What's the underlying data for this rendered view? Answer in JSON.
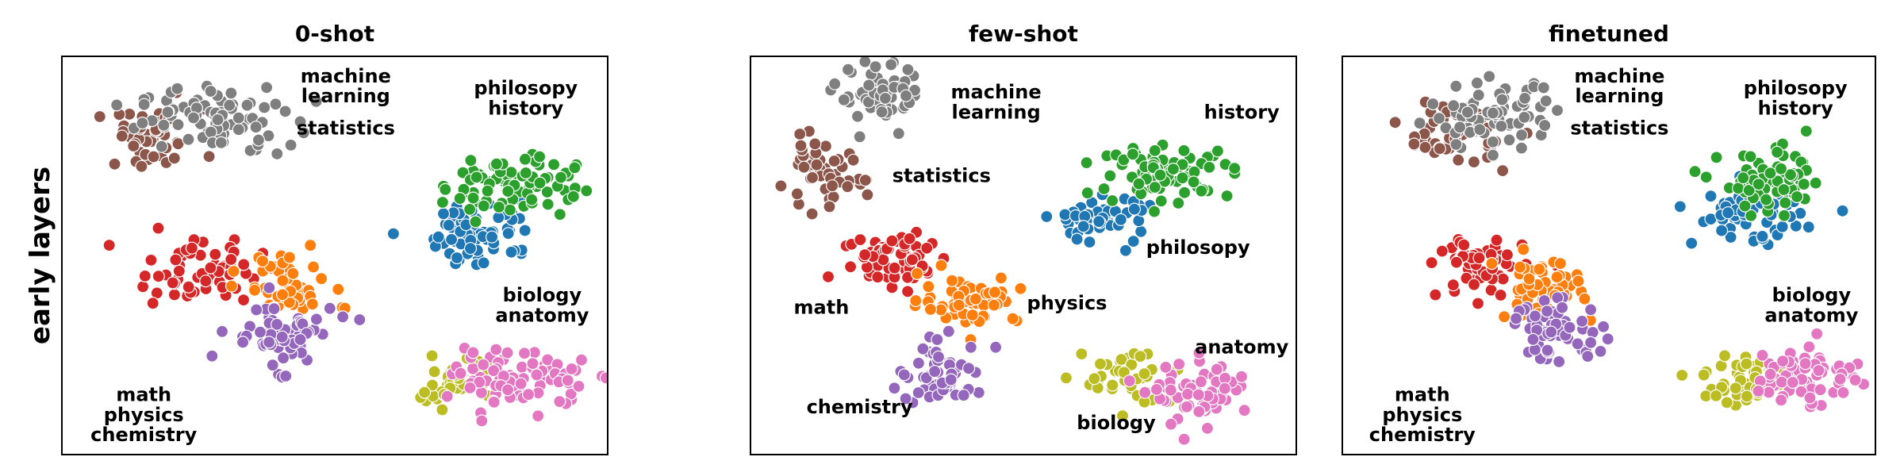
{
  "figure": {
    "row_label": "early layers"
  },
  "chart_data": [
    {
      "type": "scatter",
      "title": "0-shot",
      "xlim": [
        0,
        100
      ],
      "ylim": [
        0,
        100
      ],
      "clusters": [
        {
          "name": "statistics",
          "color": "#8c564b",
          "cx": 16,
          "cy": 79,
          "sx": 5,
          "sy": 4,
          "n": 45
        },
        {
          "name": "machine learning",
          "color": "#7f7f7f",
          "cx": 28,
          "cy": 84,
          "sx": 7,
          "sy": 4,
          "n": 80
        },
        {
          "name": "philosophy",
          "color": "#1f77b4",
          "cx": 77,
          "cy": 56,
          "sx": 5,
          "sy": 4,
          "n": 70
        },
        {
          "name": "history",
          "color": "#2ca02c",
          "cx": 82,
          "cy": 68,
          "sx": 6,
          "sy": 4,
          "n": 80
        },
        {
          "name": "math",
          "color": "#d62728",
          "cx": 25,
          "cy": 46,
          "sx": 6,
          "sy": 4,
          "n": 60
        },
        {
          "name": "physics",
          "color": "#ff7f0e",
          "cx": 41,
          "cy": 42,
          "sx": 4,
          "sy": 4.5,
          "n": 50
        },
        {
          "name": "chemistry",
          "color": "#9467bd",
          "cx": 40,
          "cy": 30,
          "sx": 5,
          "sy": 4,
          "n": 60
        },
        {
          "name": "biology",
          "color": "#bcbd22",
          "cx": 72,
          "cy": 18,
          "sx": 4.5,
          "sy": 3,
          "n": 45
        },
        {
          "name": "anatomy",
          "color": "#e377c2",
          "cx": 84,
          "cy": 19,
          "sx": 6,
          "sy": 3.5,
          "n": 80
        }
      ],
      "labels": [
        {
          "text": "machine",
          "x": 52,
          "y": 95
        },
        {
          "text": "learning",
          "x": 52,
          "y": 90
        },
        {
          "text": "statistics",
          "x": 52,
          "y": 82
        },
        {
          "text": "philosopy",
          "x": 85,
          "y": 92
        },
        {
          "text": "history",
          "x": 85,
          "y": 87
        },
        {
          "text": "biology",
          "x": 88,
          "y": 40
        },
        {
          "text": "anatomy",
          "x": 88,
          "y": 35
        },
        {
          "text": "math",
          "x": 15,
          "y": 15
        },
        {
          "text": "physics",
          "x": 15,
          "y": 10
        },
        {
          "text": "chemistry",
          "x": 15,
          "y": 5
        }
      ]
    },
    {
      "type": "scatter",
      "title": "few-shot",
      "xlim": [
        0,
        100
      ],
      "ylim": [
        0,
        100
      ],
      "clusters": [
        {
          "name": "machine learning",
          "color": "#7f7f7f",
          "cx": 24,
          "cy": 90,
          "sx": 4,
          "sy": 4,
          "n": 60
        },
        {
          "name": "statistics",
          "color": "#8c564b",
          "cx": 13,
          "cy": 70,
          "sx": 4,
          "sy": 4,
          "n": 50
        },
        {
          "name": "philosophy",
          "color": "#1f77b4",
          "cx": 64,
          "cy": 59,
          "sx": 4.5,
          "sy": 3,
          "n": 55
        },
        {
          "name": "history",
          "color": "#2ca02c",
          "cx": 76,
          "cy": 71,
          "sx": 6,
          "sy": 3,
          "n": 80
        },
        {
          "name": "math",
          "color": "#d62728",
          "cx": 27,
          "cy": 49,
          "sx": 5,
          "sy": 4,
          "n": 65
        },
        {
          "name": "physics",
          "color": "#ff7f0e",
          "cx": 40,
          "cy": 39,
          "sx": 4.5,
          "sy": 3,
          "n": 60
        },
        {
          "name": "chemistry",
          "color": "#9467bd",
          "cx": 35,
          "cy": 20,
          "sx": 4,
          "sy": 4,
          "n": 60
        },
        {
          "name": "biology",
          "color": "#bcbd22",
          "cx": 70,
          "cy": 19,
          "sx": 4.5,
          "sy": 4,
          "n": 40
        },
        {
          "name": "anatomy",
          "color": "#e377c2",
          "cx": 83,
          "cy": 15,
          "sx": 4.5,
          "sy": 4,
          "n": 65
        }
      ],
      "labels": [
        {
          "text": "machine",
          "x": 45,
          "y": 91
        },
        {
          "text": "learning",
          "x": 45,
          "y": 86
        },
        {
          "text": "statistics",
          "x": 35,
          "y": 70
        },
        {
          "text": "history",
          "x": 90,
          "y": 86
        },
        {
          "text": "philosopy",
          "x": 82,
          "y": 52
        },
        {
          "text": "math",
          "x": 13,
          "y": 37
        },
        {
          "text": "physics",
          "x": 58,
          "y": 38
        },
        {
          "text": "anatomy",
          "x": 90,
          "y": 27
        },
        {
          "text": "chemistry",
          "x": 20,
          "y": 12
        },
        {
          "text": "biology",
          "x": 67,
          "y": 8
        }
      ]
    },
    {
      "type": "scatter",
      "title": "finetuned",
      "xlim": [
        0,
        100
      ],
      "ylim": [
        0,
        100
      ],
      "clusters": [
        {
          "name": "statistics",
          "color": "#8c564b",
          "cx": 21,
          "cy": 81,
          "sx": 5,
          "sy": 4,
          "n": 50
        },
        {
          "name": "machine learning",
          "color": "#7f7f7f",
          "cx": 28,
          "cy": 85,
          "sx": 6,
          "sy": 4,
          "n": 70
        },
        {
          "name": "philosophy",
          "color": "#1f77b4",
          "cx": 76,
          "cy": 60,
          "sx": 5,
          "sy": 3.5,
          "n": 60
        },
        {
          "name": "history",
          "color": "#2ca02c",
          "cx": 81,
          "cy": 68,
          "sx": 5,
          "sy": 4,
          "n": 70
        },
        {
          "name": "math",
          "color": "#d62728",
          "cx": 26,
          "cy": 47,
          "sx": 4,
          "sy": 4,
          "n": 60
        },
        {
          "name": "physics",
          "color": "#ff7f0e",
          "cx": 37,
          "cy": 42,
          "sx": 4,
          "sy": 4,
          "n": 55
        },
        {
          "name": "chemistry",
          "color": "#9467bd",
          "cx": 40,
          "cy": 31,
          "sx": 4.5,
          "sy": 3.5,
          "n": 60
        },
        {
          "name": "biology",
          "color": "#bcbd22",
          "cx": 76,
          "cy": 19,
          "sx": 4,
          "sy": 3.5,
          "n": 45
        },
        {
          "name": "anatomy",
          "color": "#e377c2",
          "cx": 87,
          "cy": 20,
          "sx": 5,
          "sy": 4,
          "n": 70
        }
      ],
      "labels": [
        {
          "text": "machine",
          "x": 52,
          "y": 95
        },
        {
          "text": "learning",
          "x": 52,
          "y": 90
        },
        {
          "text": "statistics",
          "x": 52,
          "y": 82
        },
        {
          "text": "philosopy",
          "x": 85,
          "y": 92
        },
        {
          "text": "history",
          "x": 85,
          "y": 87
        },
        {
          "text": "biology",
          "x": 88,
          "y": 40
        },
        {
          "text": "anatomy",
          "x": 88,
          "y": 35
        },
        {
          "text": "math",
          "x": 15,
          "y": 15
        },
        {
          "text": "physics",
          "x": 15,
          "y": 10
        },
        {
          "text": "chemistry",
          "x": 15,
          "y": 5
        }
      ]
    }
  ]
}
